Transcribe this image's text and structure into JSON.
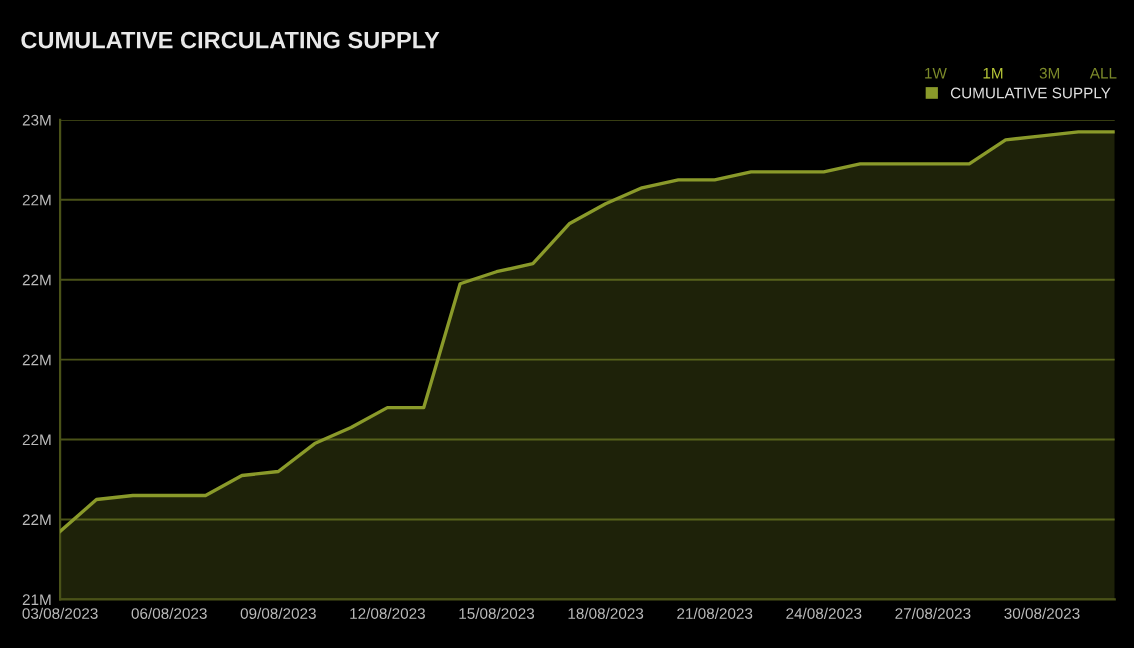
{
  "chart_data": {
    "type": "area",
    "title": "CUMULATIVE CIRCULATING SUPPLY",
    "annotations": [
      "1W",
      "1M",
      "3M",
      "ALL"
    ],
    "x": [
      "2023-08-03",
      "2023-08-04",
      "2023-08-05",
      "2023-08-06",
      "2023-08-07",
      "2023-08-08",
      "2023-08-09",
      "2023-08-10",
      "2023-08-11",
      "2023-08-12",
      "2023-08-13",
      "2023-08-14",
      "2023-08-15",
      "2023-08-16",
      "2023-08-17",
      "2023-08-18",
      "2023-08-19",
      "2023-08-20",
      "2023-08-21",
      "2023-08-22",
      "2023-08-23",
      "2023-08-24",
      "2023-08-25",
      "2023-08-26",
      "2023-08-27",
      "2023-08-28",
      "2023-08-29",
      "2023-08-30",
      "2023-08-31",
      "2023-09-01"
    ],
    "series": [
      {
        "name": "CUMULATIVE SUPPLY",
        "color": "#8a9a2a",
        "values": [
          21.57,
          21.65,
          21.66,
          21.66,
          21.66,
          21.71,
          21.72,
          21.79,
          21.83,
          21.88,
          21.88,
          22.19,
          22.22,
          22.24,
          22.34,
          22.39,
          22.43,
          22.45,
          22.45,
          22.47,
          22.47,
          22.47,
          22.49,
          22.49,
          22.49,
          22.49,
          22.55,
          22.56,
          22.57,
          22.57
        ]
      }
    ],
    "xlim": [
      "2023-08-03",
      "2023-09-01"
    ],
    "xticks": [
      {
        "value": "2023-08-03",
        "label": "03/08/2023"
      },
      {
        "value": "2023-08-06",
        "label": "06/08/2023"
      },
      {
        "value": "2023-08-09",
        "label": "09/08/2023"
      },
      {
        "value": "2023-08-12",
        "label": "12/08/2023"
      },
      {
        "value": "2023-08-15",
        "label": "15/08/2023"
      },
      {
        "value": "2023-08-18",
        "label": "18/08/2023"
      },
      {
        "value": "2023-08-21",
        "label": "21/08/2023"
      },
      {
        "value": "2023-08-24",
        "label": "24/08/2023"
      },
      {
        "value": "2023-08-27",
        "label": "27/08/2023"
      },
      {
        "value": "2023-08-30",
        "label": "30/08/2023"
      }
    ],
    "ylim": [
      21.4,
      22.6
    ],
    "yticks": [
      {
        "value": 21.4,
        "label": "21M"
      },
      {
        "value": 21.6,
        "label": "22M"
      },
      {
        "value": 21.8,
        "label": "22M"
      },
      {
        "value": 22.0,
        "label": "22M"
      },
      {
        "value": 22.2,
        "label": "22M"
      },
      {
        "value": 22.4,
        "label": "22M"
      },
      {
        "value": 22.6,
        "label": "23M"
      }
    ],
    "grid": "y",
    "legend": "top right",
    "marker": "none",
    "line_style": "solid"
  }
}
